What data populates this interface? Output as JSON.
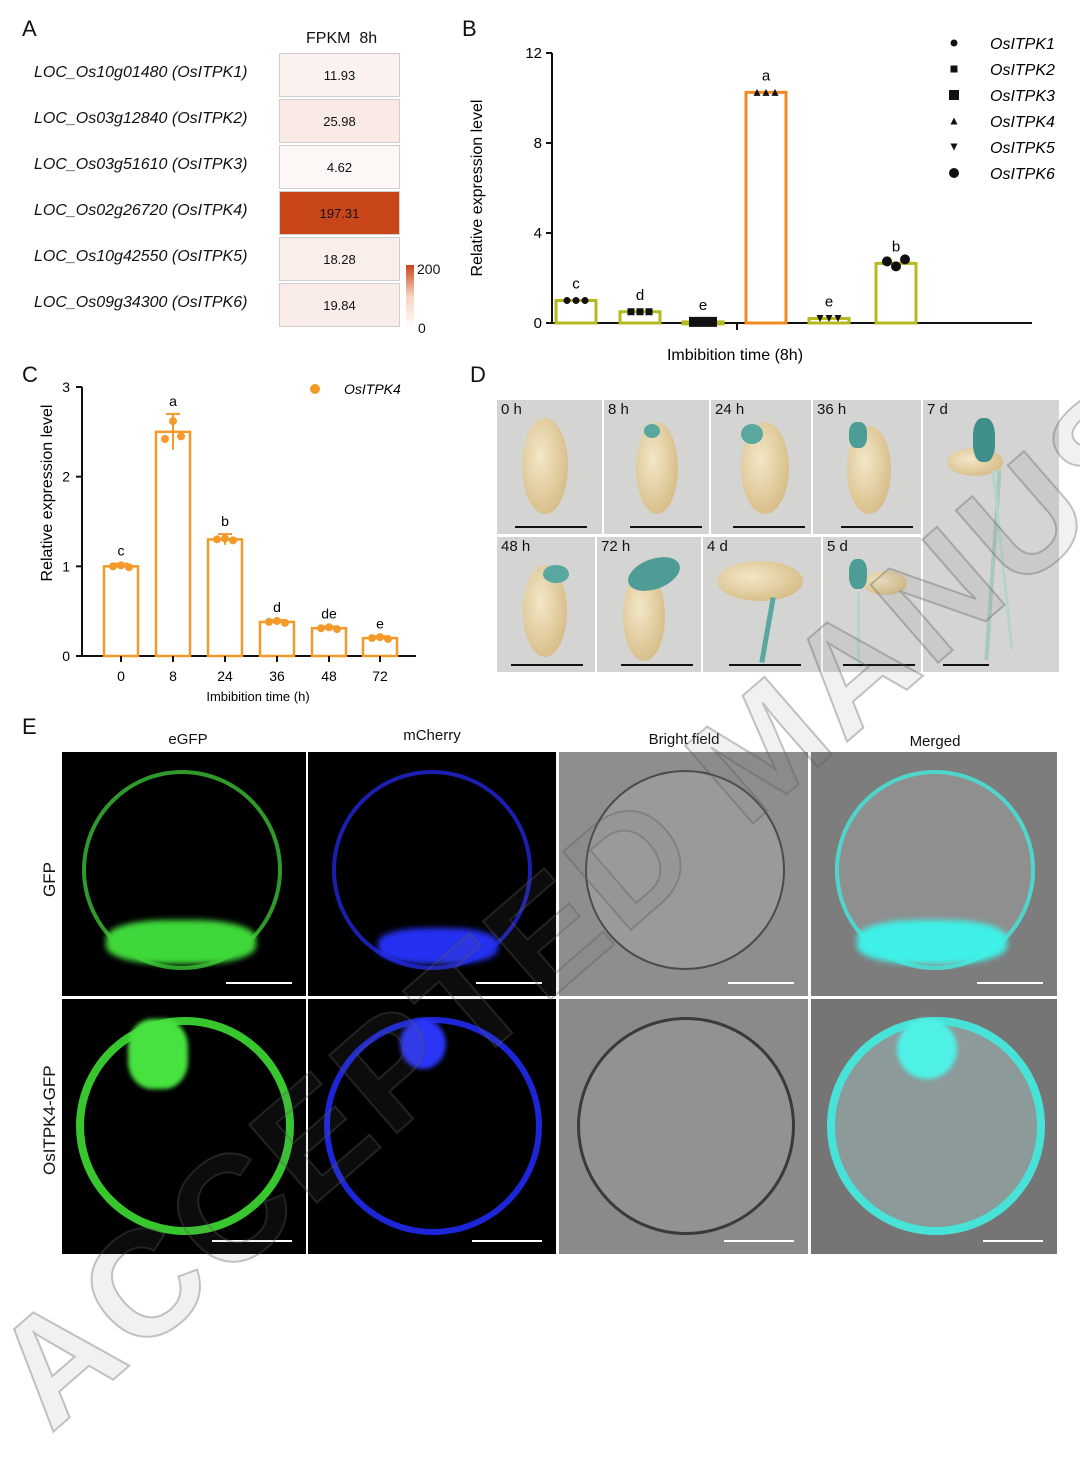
{
  "panel_labels": {
    "a": "A",
    "b": "B",
    "c": "C",
    "d": "D",
    "e": "E"
  },
  "panel_a": {
    "col_header": "FPKM  8h",
    "colorbar": {
      "max_label": "200",
      "min_label": "0",
      "max_value": 200,
      "low_color": "#ffffff",
      "high_color": "#c9461a"
    },
    "rows": [
      {
        "locus": "LOC_Os10g01480",
        "gene": "OsITPK1",
        "value": "11.93"
      },
      {
        "locus": "LOC_Os03g12840",
        "gene": "OsITPK2",
        "value": "25.98"
      },
      {
        "locus": "LOC_Os03g51610",
        "gene": "OsITPK3",
        "value": "4.62"
      },
      {
        "locus": "LOC_Os02g26720",
        "gene": "OsITPK4",
        "value": "197.31"
      },
      {
        "locus": "LOC_Os10g42550",
        "gene": "OsITPK5",
        "value": "18.28"
      },
      {
        "locus": "LOC_Os09g34300",
        "gene": "OsITPK6",
        "value": "19.84"
      }
    ]
  },
  "chart_data": [
    {
      "id": "B",
      "type": "bar",
      "title": "",
      "xlabel": "Imbibition time (8h)",
      "ylabel": "Relative expression level",
      "ylim": [
        0,
        12
      ],
      "yticks": [
        "0",
        "4",
        "8",
        "12"
      ],
      "categories": [
        "OsITPK1",
        "OsITPK2",
        "OsITPK3",
        "OsITPK4",
        "OsITPK5",
        "OsITPK6"
      ],
      "values": [
        1.0,
        0.5,
        0.05,
        10.25,
        0.2,
        2.65
      ],
      "letters": [
        "c",
        "d",
        "e",
        "a",
        "e",
        "b"
      ],
      "legend": [
        "OsITPK1",
        "OsITPK2",
        "OsITPK3",
        "OsITPK4",
        "OsITPK5",
        "OsITPK6"
      ],
      "bar_colors": [
        "#b6b81e",
        "#b6b81e",
        "#b6b81e",
        "#f08a1f",
        "#b6b81e",
        "#b6b81e"
      ]
    },
    {
      "id": "C",
      "type": "bar",
      "title": "",
      "xlabel": "Imbibition time (h)",
      "ylabel": "Relative expression level",
      "ylim": [
        0,
        3
      ],
      "yticks": [
        "0",
        "1",
        "2",
        "3"
      ],
      "categories": [
        "0",
        "8",
        "24",
        "36",
        "48",
        "72"
      ],
      "values": [
        1.0,
        2.5,
        1.3,
        0.38,
        0.31,
        0.2
      ],
      "errors": [
        0.03,
        0.2,
        0.06,
        0.02,
        0.02,
        0.02
      ],
      "letters": [
        "c",
        "a",
        "b",
        "d",
        "de",
        "e"
      ],
      "legend": [
        "OsITPK4"
      ],
      "color": "#f39a2b"
    }
  ],
  "panel_d": {
    "top_row": [
      "0 h",
      "8 h",
      "24 h",
      "36 h"
    ],
    "bottom_row": [
      "48 h",
      "72 h",
      "4 d",
      "5 d"
    ],
    "tall": "7 d"
  },
  "panel_e": {
    "columns": [
      "eGFP",
      "mCherry",
      "Bright field",
      "Merged"
    ],
    "rows": [
      "GFP",
      "OsITPK4-GFP"
    ]
  },
  "watermark": "ACCEPTED MANUSCRIPT"
}
